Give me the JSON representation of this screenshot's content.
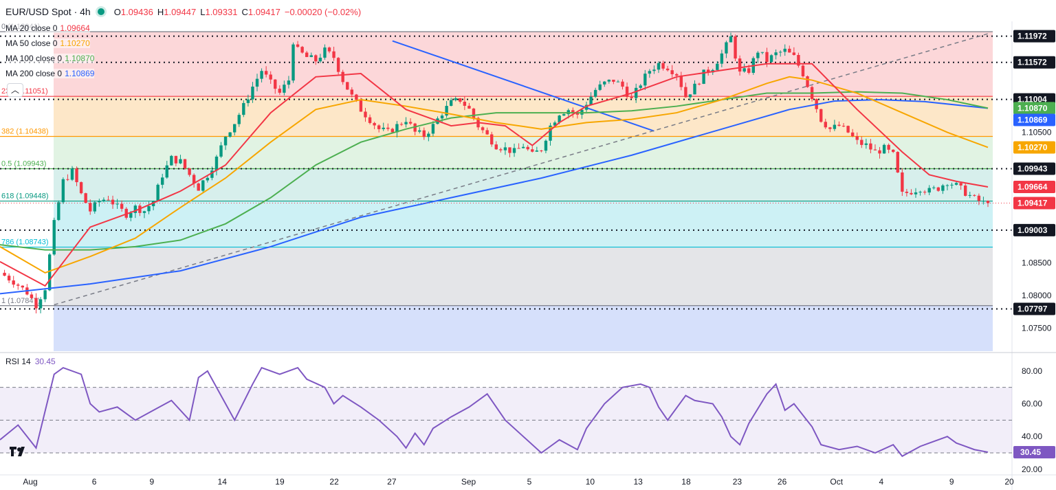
{
  "header": {
    "symbol": "EUR/USD Spot · 4h",
    "o_label": "O",
    "o": "1.09436",
    "h_label": "H",
    "h": "1.09447",
    "l_label": "L",
    "l": "1.09331",
    "c_label": "C",
    "c": "1.09417",
    "change": "−0.00020 (−0.02%)"
  },
  "indicators": [
    {
      "label": "MA 20 close 0",
      "value": "1.09664",
      "color": "#f23645"
    },
    {
      "label": "MA 50 close 0",
      "value": "1.10270",
      "color": "#f7a600"
    },
    {
      "label": "MA 100 close 0",
      "value": "1.10870",
      "color": "#4caf50"
    },
    {
      "label": "MA 200 close 0",
      "value": "1.10869",
      "color": "#2962ff"
    }
  ],
  "colors": {
    "up": "#089981",
    "down": "#f23645",
    "rsi": "#7e57c2"
  },
  "chart_data": [
    {
      "type": "candlestick",
      "title": "EUR/USD Spot · 4h",
      "ylim": [
        1.0715,
        1.122
      ],
      "y_ticks": [
        "1.07500",
        "1.08000",
        "1.08500",
        "1.10500"
      ],
      "x_ticks": [
        "Aug",
        "6",
        "9",
        "14",
        "19",
        "22",
        "27",
        "Sep",
        "5",
        "10",
        "13",
        "18",
        "23",
        "26",
        "Oct",
        "4",
        "9",
        "20"
      ],
      "fib_levels": [
        {
          "label": "0 (1.12041)",
          "value": 1.12041,
          "color": "#787b86"
        },
        {
          "label": "236 (1.11051)",
          "value": 1.11051,
          "color": "#f23645"
        },
        {
          "label": "382 (1.10438)",
          "value": 1.10438,
          "color": "#ff9800"
        },
        {
          "label": "0.5 (1.09943)",
          "value": 1.09943,
          "color": "#4caf50"
        },
        {
          "label": "618 (1.09448)",
          "value": 1.09448,
          "color": "#089981"
        },
        {
          "label": "786 (1.08743)",
          "value": 1.08743,
          "color": "#00bcd4"
        },
        {
          "label": "1 (1.07847)",
          "value": 1.07847,
          "color": "#787b86"
        }
      ],
      "hlines": [
        {
          "value": 1.11972,
          "label": "1.11972"
        },
        {
          "value": 1.11572,
          "label": "1.11572"
        },
        {
          "value": 1.11004,
          "label": "1.11004"
        },
        {
          "value": 1.09943,
          "label": "1.09943"
        },
        {
          "value": 1.09003,
          "label": "1.09003"
        },
        {
          "value": 1.07797,
          "label": "1.07797"
        }
      ],
      "price_tags": [
        {
          "label": "1.10870",
          "value": 1.1087,
          "color": "#4caf50"
        },
        {
          "label": "1.10869",
          "value": 1.10869,
          "color": "#2962ff"
        },
        {
          "label": "1.10270",
          "value": 1.1027,
          "color": "#f7a600"
        },
        {
          "label": "1.09664",
          "value": 1.09664,
          "color": "#f23645"
        },
        {
          "label": "1.09417",
          "value": 1.09417,
          "color": "#f23645"
        }
      ],
      "last_price": 1.09417,
      "close_path": [
        [
          0,
          1.0835
        ],
        [
          3,
          1.0822
        ],
        [
          6,
          1.0805
        ],
        [
          8,
          1.0786
        ],
        [
          10,
          1.0812
        ],
        [
          12,
          1.091
        ],
        [
          14,
          1.0975
        ],
        [
          16,
          1.099
        ],
        [
          18,
          1.0955
        ],
        [
          20,
          1.093
        ],
        [
          22,
          1.0945
        ],
        [
          24,
          1.095
        ],
        [
          26,
          1.0935
        ],
        [
          28,
          1.0925
        ],
        [
          30,
          1.0935
        ],
        [
          32,
          1.093
        ],
        [
          34,
          1.0945
        ],
        [
          36,
          1.0985
        ],
        [
          38,
          1.101
        ],
        [
          40,
          1.1005
        ],
        [
          42,
          1.0985
        ],
        [
          44,
          1.0965
        ],
        [
          46,
          1.0985
        ],
        [
          48,
          1.101
        ],
        [
          50,
          1.1045
        ],
        [
          52,
          1.1065
        ],
        [
          54,
          1.109
        ],
        [
          56,
          1.112
        ],
        [
          58,
          1.1145
        ],
        [
          60,
          1.1125
        ],
        [
          62,
          1.111
        ],
        [
          64,
          1.113
        ],
        [
          65,
          1.119
        ],
        [
          66,
          1.1175
        ],
        [
          68,
          1.1165
        ],
        [
          70,
          1.116
        ],
        [
          72,
          1.1175
        ],
        [
          74,
          1.1165
        ],
        [
          76,
          1.113
        ],
        [
          78,
          1.1105
        ],
        [
          80,
          1.1085
        ],
        [
          82,
          1.107
        ],
        [
          84,
          1.1055
        ],
        [
          86,
          1.105
        ],
        [
          88,
          1.106
        ],
        [
          90,
          1.107
        ],
        [
          92,
          1.105
        ],
        [
          94,
          1.1045
        ],
        [
          96,
          1.106
        ],
        [
          98,
          1.108
        ],
        [
          100,
          1.1095
        ],
        [
          102,
          1.11
        ],
        [
          104,
          1.1085
        ],
        [
          106,
          1.106
        ],
        [
          108,
          1.1045
        ],
        [
          110,
          1.103
        ],
        [
          112,
          1.1025
        ],
        [
          114,
          1.102
        ],
        [
          116,
          1.103
        ],
        [
          118,
          1.1015
        ],
        [
          120,
          1.1025
        ],
        [
          122,
          1.106
        ],
        [
          124,
          1.108
        ],
        [
          126,
          1.1085
        ],
        [
          128,
          1.1075
        ],
        [
          130,
          1.1095
        ],
        [
          132,
          1.1115
        ],
        [
          134,
          1.1125
        ],
        [
          136,
          1.113
        ],
        [
          138,
          1.112
        ],
        [
          140,
          1.11
        ],
        [
          142,
          1.1125
        ],
        [
          144,
          1.1145
        ],
        [
          146,
          1.1155
        ],
        [
          148,
          1.115
        ],
        [
          150,
          1.114
        ],
        [
          152,
          1.1105
        ],
        [
          154,
          1.112
        ],
        [
          156,
          1.114
        ],
        [
          158,
          1.115
        ],
        [
          160,
          1.117
        ],
        [
          162,
          1.1195
        ],
        [
          164,
          1.114
        ],
        [
          166,
          1.1145
        ],
        [
          168,
          1.1175
        ],
        [
          170,
          1.116
        ],
        [
          172,
          1.117
        ],
        [
          174,
          1.1175
        ],
        [
          176,
          1.1165
        ],
        [
          178,
          1.114
        ],
        [
          180,
          1.1105
        ],
        [
          182,
          1.107
        ],
        [
          184,
          1.1055
        ],
        [
          186,
          1.106
        ],
        [
          188,
          1.105
        ],
        [
          190,
          1.1035
        ],
        [
          192,
          1.103
        ],
        [
          194,
          1.102
        ],
        [
          196,
          1.1025
        ],
        [
          198,
          1.1015
        ],
        [
          200,
          1.0955
        ],
        [
          202,
          1.096
        ],
        [
          204,
          1.0965
        ],
        [
          206,
          1.096
        ],
        [
          208,
          1.0965
        ],
        [
          210,
          1.0975
        ],
        [
          212,
          1.0968
        ],
        [
          214,
          1.0958
        ],
        [
          216,
          1.0948
        ],
        [
          218,
          1.0942
        ],
        [
          219,
          1.09417
        ]
      ],
      "ma20_path": [
        [
          0,
          1.0852
        ],
        [
          10,
          1.0815
        ],
        [
          20,
          1.0905
        ],
        [
          30,
          1.093
        ],
        [
          40,
          1.096
        ],
        [
          50,
          1.1
        ],
        [
          60,
          1.108
        ],
        [
          70,
          1.1135
        ],
        [
          80,
          1.114
        ],
        [
          90,
          1.1085
        ],
        [
          100,
          1.106
        ],
        [
          106,
          1.1065
        ],
        [
          112,
          1.106
        ],
        [
          118,
          1.103
        ],
        [
          124,
          1.1065
        ],
        [
          130,
          1.109
        ],
        [
          140,
          1.111
        ],
        [
          150,
          1.1135
        ],
        [
          160,
          1.1145
        ],
        [
          170,
          1.1155
        ],
        [
          180,
          1.1155
        ],
        [
          190,
          1.1085
        ],
        [
          200,
          1.102
        ],
        [
          206,
          1.0985
        ],
        [
          212,
          1.0975
        ],
        [
          219,
          1.09664
        ]
      ],
      "ma50_path": [
        [
          0,
          1.0875
        ],
        [
          10,
          1.0835
        ],
        [
          20,
          1.086
        ],
        [
          30,
          1.0888
        ],
        [
          40,
          1.0935
        ],
        [
          50,
          1.098
        ],
        [
          60,
          1.1035
        ],
        [
          70,
          1.1085
        ],
        [
          80,
          1.11
        ],
        [
          90,
          1.109
        ],
        [
          100,
          1.1078
        ],
        [
          110,
          1.1065
        ],
        [
          120,
          1.1055
        ],
        [
          130,
          1.1065
        ],
        [
          140,
          1.107
        ],
        [
          150,
          1.108
        ],
        [
          160,
          1.11
        ],
        [
          170,
          1.1125
        ],
        [
          175,
          1.1135
        ],
        [
          180,
          1.113
        ],
        [
          190,
          1.111
        ],
        [
          200,
          1.108
        ],
        [
          210,
          1.105
        ],
        [
          219,
          1.1027
        ]
      ],
      "ma100_path": [
        [
          0,
          1.0878
        ],
        [
          10,
          1.087
        ],
        [
          20,
          1.087
        ],
        [
          30,
          1.0875
        ],
        [
          40,
          1.0885
        ],
        [
          50,
          1.091
        ],
        [
          60,
          1.095
        ],
        [
          70,
          1.1
        ],
        [
          80,
          1.1035
        ],
        [
          90,
          1.1055
        ],
        [
          100,
          1.1072
        ],
        [
          110,
          1.108
        ],
        [
          120,
          1.108
        ],
        [
          130,
          1.108
        ],
        [
          140,
          1.1083
        ],
        [
          150,
          1.109
        ],
        [
          160,
          1.11
        ],
        [
          170,
          1.111
        ],
        [
          180,
          1.111
        ],
        [
          190,
          1.1112
        ],
        [
          200,
          1.111
        ],
        [
          210,
          1.11
        ],
        [
          219,
          1.1087
        ]
      ],
      "ma200_path": [
        [
          0,
          1.0803
        ],
        [
          20,
          1.0818
        ],
        [
          40,
          1.0838
        ],
        [
          60,
          1.0875
        ],
        [
          80,
          1.092
        ],
        [
          100,
          1.095
        ],
        [
          120,
          1.098
        ],
        [
          140,
          1.1015
        ],
        [
          160,
          1.1055
        ],
        [
          175,
          1.1085
        ],
        [
          185,
          1.1098
        ],
        [
          195,
          1.11
        ],
        [
          205,
          1.1097
        ],
        [
          219,
          1.10869
        ]
      ],
      "trend_lines": [
        {
          "style": "solid",
          "color": "#2962ff",
          "from": [
            87,
            1.119
          ],
          "to": [
            145,
            1.1052
          ]
        },
        {
          "style": "dashed",
          "color": "#787b86",
          "from": [
            12,
            1.0786
          ],
          "to": [
            219,
            1.1201
          ]
        }
      ]
    },
    {
      "type": "line",
      "title": "RSI 14",
      "ylim": [
        17,
        90
      ],
      "y_ticks": [
        "80.00",
        "60.00",
        "40.00",
        "20.00"
      ],
      "bands": [
        70,
        50,
        30
      ],
      "last_value": 30.45,
      "last_label": "30.45",
      "values_path": [
        [
          0,
          38
        ],
        [
          4,
          47
        ],
        [
          8,
          33
        ],
        [
          12,
          78
        ],
        [
          14,
          82
        ],
        [
          18,
          78
        ],
        [
          20,
          60
        ],
        [
          22,
          55
        ],
        [
          26,
          58
        ],
        [
          30,
          50
        ],
        [
          34,
          56
        ],
        [
          38,
          62
        ],
        [
          42,
          50
        ],
        [
          44,
          76
        ],
        [
          46,
          80
        ],
        [
          50,
          60
        ],
        [
          52,
          50
        ],
        [
          56,
          72
        ],
        [
          58,
          82
        ],
        [
          62,
          78
        ],
        [
          66,
          82
        ],
        [
          68,
          75
        ],
        [
          72,
          70
        ],
        [
          74,
          60
        ],
        [
          76,
          65
        ],
        [
          80,
          58
        ],
        [
          84,
          50
        ],
        [
          88,
          40
        ],
        [
          90,
          33
        ],
        [
          92,
          42
        ],
        [
          94,
          35
        ],
        [
          96,
          45
        ],
        [
          100,
          52
        ],
        [
          104,
          58
        ],
        [
          108,
          66
        ],
        [
          112,
          50
        ],
        [
          116,
          40
        ],
        [
          120,
          30
        ],
        [
          124,
          38
        ],
        [
          128,
          32
        ],
        [
          130,
          45
        ],
        [
          134,
          60
        ],
        [
          138,
          70
        ],
        [
          142,
          72
        ],
        [
          144,
          70
        ],
        [
          146,
          58
        ],
        [
          148,
          50
        ],
        [
          152,
          65
        ],
        [
          154,
          62
        ],
        [
          158,
          60
        ],
        [
          160,
          52
        ],
        [
          162,
          40
        ],
        [
          164,
          35
        ],
        [
          166,
          48
        ],
        [
          170,
          66
        ],
        [
          172,
          72
        ],
        [
          174,
          56
        ],
        [
          176,
          60
        ],
        [
          180,
          46
        ],
        [
          182,
          35
        ],
        [
          186,
          32
        ],
        [
          190,
          34
        ],
        [
          194,
          30
        ],
        [
          198,
          35
        ],
        [
          200,
          28
        ],
        [
          204,
          34
        ],
        [
          206,
          36
        ],
        [
          208,
          38
        ],
        [
          210,
          40
        ],
        [
          212,
          36
        ],
        [
          216,
          32
        ],
        [
          219,
          30.45
        ]
      ]
    }
  ]
}
